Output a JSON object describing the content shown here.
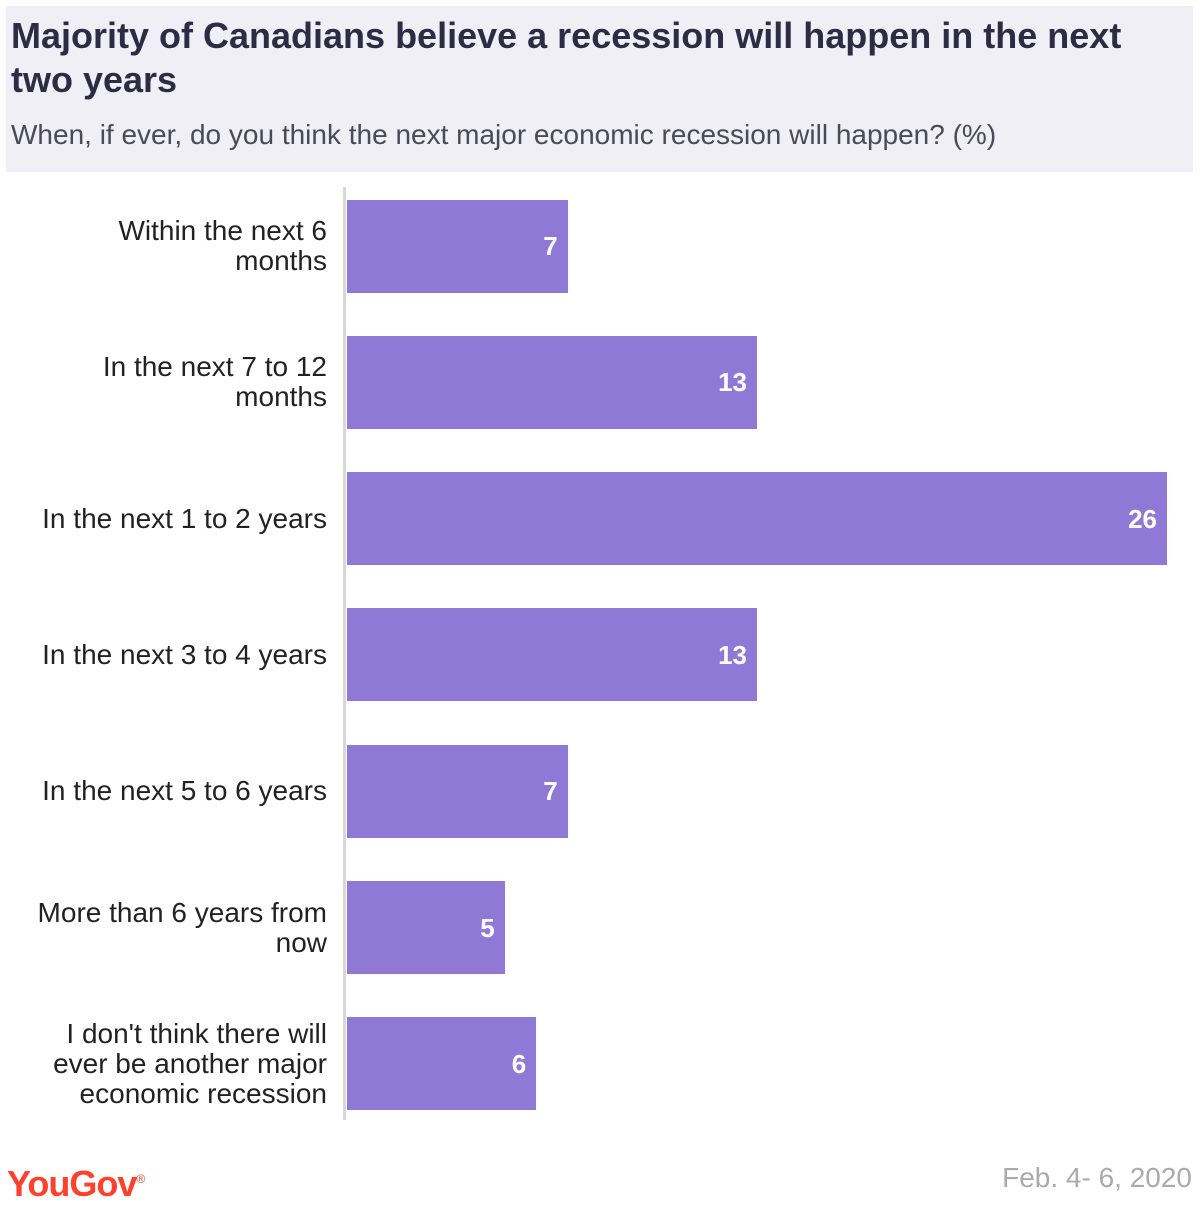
{
  "header": {
    "title": "Majority of Canadians believe a recession will happen in the next two years",
    "subtitle": "When, if ever, do you think the next major economic recession will happen? (%)"
  },
  "chart_data": {
    "type": "bar",
    "orientation": "horizontal",
    "title": "Majority of Canadians believe a recession will happen in the next two years",
    "subtitle": "When, if ever, do you think the next major economic recession will happen? (%)",
    "categories": [
      "Within the next 6 months",
      "In the next 7 to 12 months",
      "In the next 1 to 2 years",
      "In the next 3 to 4 years",
      "In the next 5 to 6 years",
      "More than 6 years from now",
      "I don't think there will ever be another major economic recession"
    ],
    "values": [
      7,
      13,
      26,
      13,
      7,
      5,
      6
    ],
    "xlim": [
      0,
      26
    ],
    "grid": false,
    "legend": "none",
    "bar_color": "#9079d6",
    "value_label_color": "#ffffff"
  },
  "footer": {
    "logo": "YouGov",
    "logo_mark": "®",
    "date": "Feb. 4- 6, 2020"
  },
  "colors": {
    "header_background": "#efeff5",
    "title": "#2e2b45",
    "bar": "#9079d6",
    "brand": "#ff412c",
    "date": "#aaaaaa"
  }
}
